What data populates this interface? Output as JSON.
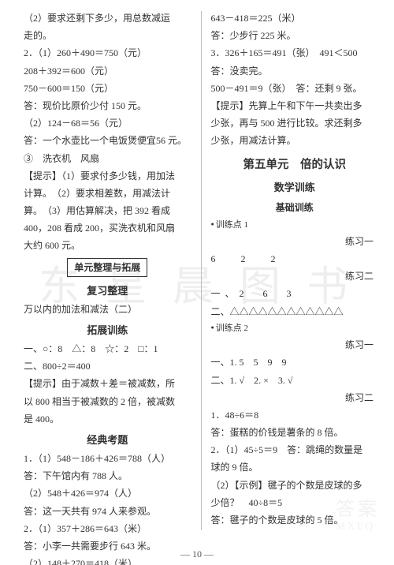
{
  "watermark": {
    "main": "东 星 晨 图 书",
    "logo_top": "答案",
    "logo_bottom": "MXEQ"
  },
  "footer": "— 10 —",
  "left": {
    "l01": "（2）要求还剩下多少，用总数减运",
    "l02": "走的。",
    "l03": "2．（1）260＋490＝750（元）",
    "l04": "208＋392＝600（元）",
    "l05": "750－600＝150（元）",
    "l06": "答：现价比原价少付 150 元。",
    "l07": "（2）124－68＝56（元）",
    "l08": "答：一个水壶比一个电饭煲便宜56 元。",
    "l09": "③　洗衣机　风扇",
    "l10": "【提示】（1）要求付多少钱，用加法",
    "l11": "计算。　（2）要求相差数，用减法计",
    "l12": "算。　（3）用估算解决，把 392 看成",
    "l13": "400，208 看成 200，买洗衣机和风扇",
    "l14": "大约 600 元。",
    "box1": "单元整理与拓展",
    "sub1": "复习整理",
    "l15": "万以内的加法和减法（二）",
    "sub2": "拓展训练",
    "l16": "一、○：8　△：8　☆：2　□：1",
    "l17": "二、800÷2＝400",
    "l18": "【提示】由于减数＋差＝被减数，所",
    "l19": "以 800 相当于被减数的 2 倍，被减数",
    "l20": "是 400。",
    "sub3": "经典考题",
    "l21": "1．（1）548－186＋426＝788（人）",
    "l22": "答：下午馆内有 788 人。",
    "l23": "（2）548＋426＝974（人）",
    "l24": "答：这一天共有 974 人来参观。",
    "l25": "2．（1）357＋286＝643（米）",
    "l26": "答：小李一共需要步行 643 米。",
    "l27": "（2）148＋270＝418（米）"
  },
  "right": {
    "r01": "643－418＝225（米）",
    "r02": "答：少步行 225 米。",
    "r03": "3．326＋165＝491（张）　491＜500",
    "r04": "答：没卖完。",
    "r05": "500－491＝9（张）　答：还剩 9 张。",
    "r06": "【提示】先算上午和下午一共卖出多",
    "r07": "少张，再与 500 进行比较。求还剩多",
    "r08": "少张，用减法计算。",
    "bigTitle": "第五单元　倍的认识",
    "sub1": "数学训练",
    "sub2": "基础训练",
    "dot1": "训练点 1",
    "ex1": "练习一",
    "r09": "6　2　2",
    "ex2": "练习二",
    "r10": "一、2　6　3",
    "r11": "二、△△△△△△△△△△△△",
    "dot2": "训练点 2",
    "ex3": "练习一",
    "r12": "一、1. 5　5　9　9",
    "r13": "二、1. √　2. ×　3. √",
    "ex4": "练习二",
    "r14": "1．48÷6＝8",
    "r15": "答：蛋糕的价钱是薯条的 8 倍。",
    "r16": "2．（1）45÷5＝9　答：跳绳的数量是",
    "r17": "球的 9 倍。",
    "r18": "（2）【示例】毽子的个数是皮球的多",
    "r19": "少倍？　40÷8＝5",
    "r20": "答：毽子的个数是皮球的 5 倍。"
  }
}
